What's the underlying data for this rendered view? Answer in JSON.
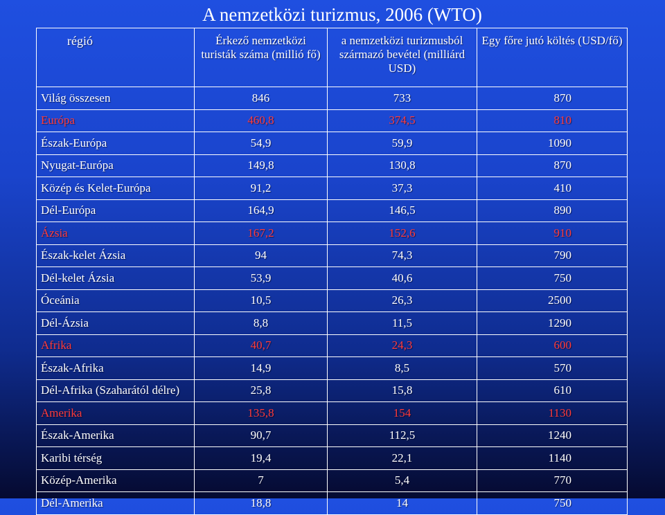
{
  "title": "A nemzetközi turizmus, 2006 (WTO)",
  "headers": [
    "régió",
    "Érkező nemzetközi turisták száma (millió fő)",
    "a nemzetközi turizmusból származó bevétel (milliárd USD)",
    "Egy főre jutó költés (USD/fő)"
  ],
  "colors": {
    "continent_text": "#ff3b3b",
    "default_text": "#ffffff",
    "grid": "#ffffff"
  },
  "rows": [
    {
      "region": "Világ összesen",
      "arrivals": "846",
      "revenue": "733",
      "spend": "870"
    },
    {
      "region": "Európa",
      "arrivals": "460,8",
      "revenue": "374,5",
      "spend": "810"
    },
    {
      "region": "Észak-Európa",
      "arrivals": "54,9",
      "revenue": "59,9",
      "spend": "1090"
    },
    {
      "region": "Nyugat-Európa",
      "arrivals": "149,8",
      "revenue": "130,8",
      "spend": "870"
    },
    {
      "region": "Közép és Kelet-Európa",
      "arrivals": "91,2",
      "revenue": "37,3",
      "spend": "410"
    },
    {
      "region": "Dél-Európa",
      "arrivals": "164,9",
      "revenue": "146,5",
      "spend": "890"
    },
    {
      "region": "Ázsia",
      "arrivals": "167,2",
      "revenue": "152,6",
      "spend": "910"
    },
    {
      "region": "Észak-kelet Ázsia",
      "arrivals": "94",
      "revenue": "74,3",
      "spend": "790"
    },
    {
      "region": "Dél-kelet Ázsia",
      "arrivals": "53,9",
      "revenue": "40,6",
      "spend": "750"
    },
    {
      "region": "Óceánia",
      "arrivals": "10,5",
      "revenue": "26,3",
      "spend": "2500"
    },
    {
      "region": "Dél-Ázsia",
      "arrivals": "8,8",
      "revenue": "11,5",
      "spend": "1290"
    },
    {
      "region": "Afrika",
      "arrivals": "40,7",
      "revenue": "24,3",
      "spend": "600"
    },
    {
      "region": "Észak-Afrika",
      "arrivals": "14,9",
      "revenue": "8,5",
      "spend": "570"
    },
    {
      "region": "Dél-Afrika (Szaharától délre)",
      "arrivals": "25,8",
      "revenue": "15,8",
      "spend": "610"
    },
    {
      "region": "Amerika",
      "arrivals": "135,8",
      "revenue": "154",
      "spend": "1130"
    },
    {
      "region": "Észak-Amerika",
      "arrivals": "90,7",
      "revenue": "112,5",
      "spend": "1240"
    },
    {
      "region": "Karibi térség",
      "arrivals": "19,4",
      "revenue": "22,1",
      "spend": "1140"
    },
    {
      "region": "Közép-Amerika",
      "arrivals": "7",
      "revenue": "5,4",
      "spend": "770"
    },
    {
      "region": "Dél-Amerika",
      "arrivals": "18,8",
      "revenue": "14",
      "spend": "750"
    }
  ]
}
